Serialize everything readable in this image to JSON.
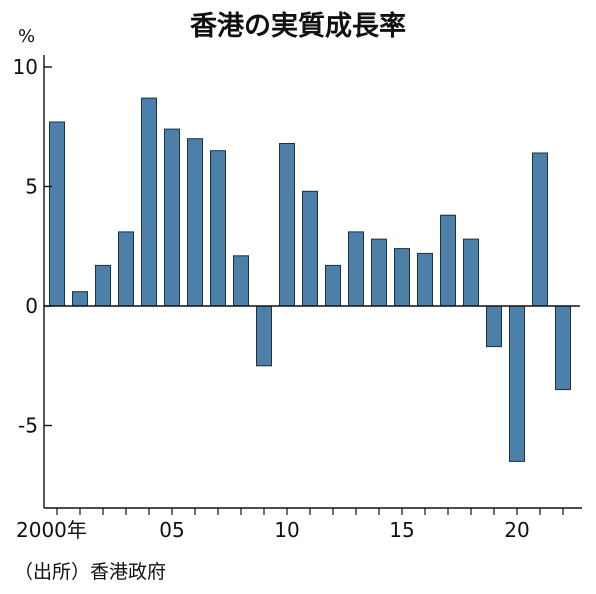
{
  "chart_data": {
    "type": "bar",
    "title": "香港の実質成長率",
    "unit": "%",
    "source": "（出所）香港政府",
    "x": [
      2000,
      2001,
      2002,
      2003,
      2004,
      2005,
      2006,
      2007,
      2008,
      2009,
      2010,
      2011,
      2012,
      2013,
      2014,
      2015,
      2016,
      2017,
      2018,
      2019,
      2020,
      2021,
      2022
    ],
    "values": [
      7.7,
      0.6,
      1.7,
      3.1,
      8.7,
      7.4,
      7.0,
      6.5,
      2.1,
      -2.5,
      6.8,
      4.8,
      1.7,
      3.1,
      2.8,
      2.4,
      2.2,
      3.8,
      2.8,
      -1.7,
      -6.5,
      6.4,
      -3.5
    ],
    "x_tick_labels": [
      {
        "x": 2000,
        "label": "2000年"
      },
      {
        "x": 2005,
        "label": "05"
      },
      {
        "x": 2010,
        "label": "10"
      },
      {
        "x": 2015,
        "label": "15"
      },
      {
        "x": 2020,
        "label": "20"
      }
    ],
    "y_ticks": [
      {
        "value": 10,
        "label": "10"
      },
      {
        "value": 5,
        "label": "5"
      },
      {
        "value": 0,
        "label": "0"
      },
      {
        "value": -5,
        "label": "-5"
      }
    ],
    "ylim": [
      -8.4,
      10.5
    ],
    "grid": false,
    "bar_color": "#4d80a8",
    "bar_edge_color": "#1f2f3d"
  }
}
